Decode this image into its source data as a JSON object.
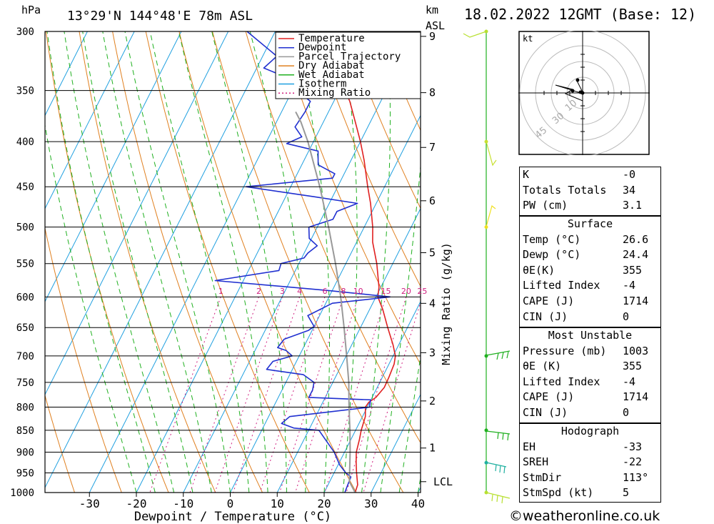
{
  "header": {
    "location": "13°29'N 144°48'E 78m ASL",
    "datetime": "18.02.2022 12GMT (Base: 12)",
    "unit_hpa": "hPa",
    "unit_km": "km",
    "unit_asl": "ASL"
  },
  "chart_data": {
    "type": "line",
    "xlabel": "Dewpoint / Temperature (°C)",
    "xlim": [
      -40,
      40
    ],
    "x_ticks": [
      -30,
      -20,
      -10,
      0,
      10,
      20,
      30,
      40
    ],
    "ylabel": "hPa",
    "ylim": [
      1000,
      300
    ],
    "pressure_ticks": [
      300,
      350,
      400,
      450,
      500,
      550,
      600,
      650,
      700,
      750,
      800,
      850,
      900,
      950,
      1000
    ],
    "km_ticks": [
      1,
      2,
      3,
      4,
      5,
      6,
      7,
      8,
      9
    ],
    "lcl_label": "LCL",
    "lcl_pressure": 972,
    "mixing_ratio_label": "Mixing Ratio (g/kg)",
    "mixing_ratio_values": [
      "1",
      "2",
      "3",
      "4",
      "6",
      "8",
      "10",
      "15",
      "20",
      "25"
    ],
    "legend": [
      "Temperature",
      "Dewpoint",
      "Parcel Trajectory",
      "Dry Adiabat",
      "Wet Adiabat",
      "Isotherm",
      "Mixing Ratio"
    ],
    "legend_placement": "top-center",
    "colors": {
      "temperature": "#e02020",
      "dewpoint": "#2030d0",
      "parcel": "#999999",
      "dry_adiabat": "#e08020",
      "wet_adiabat": "#20b020",
      "isotherm": "#20a0e0",
      "mixing_ratio": "#d02080"
    },
    "series": [
      {
        "name": "Temperature",
        "points": [
          [
            1000,
            26.6
          ],
          [
            980,
            26.3
          ],
          [
            950,
            24.8
          ],
          [
            925,
            23.6
          ],
          [
            900,
            22.5
          ],
          [
            870,
            21.8
          ],
          [
            850,
            21.2
          ],
          [
            820,
            20.6
          ],
          [
            800,
            19.6
          ],
          [
            790,
            19.8
          ],
          [
            780,
            20.8
          ],
          [
            760,
            21.5
          ],
          [
            740,
            21.4
          ],
          [
            715,
            21.1
          ],
          [
            700,
            20.5
          ],
          [
            680,
            18.8
          ],
          [
            650,
            15.8
          ],
          [
            620,
            12.8
          ],
          [
            600,
            10.4
          ],
          [
            585,
            9.6
          ],
          [
            550,
            6.6
          ],
          [
            520,
            3.4
          ],
          [
            500,
            1.8
          ],
          [
            470,
            -1.2
          ],
          [
            450,
            -3.6
          ],
          [
            420,
            -7.2
          ],
          [
            400,
            -10.0
          ],
          [
            380,
            -13.2
          ],
          [
            360,
            -16.6
          ],
          [
            350,
            -18.8
          ],
          [
            345,
            -20.0
          ]
        ]
      },
      {
        "name": "Dewpoint",
        "points": [
          [
            1000,
            24.4
          ],
          [
            960,
            24.0
          ],
          [
            950,
            22.5
          ],
          [
            930,
            20.3
          ],
          [
            900,
            17.8
          ],
          [
            850,
            12.2
          ],
          [
            845,
            6.6
          ],
          [
            835,
            3.5
          ],
          [
            820,
            4.5
          ],
          [
            800,
            20.5
          ],
          [
            785,
            19.9
          ],
          [
            780,
            6.5
          ],
          [
            765,
            6.5
          ],
          [
            750,
            6.0
          ],
          [
            735,
            2.9
          ],
          [
            725,
            -5.5
          ],
          [
            710,
            -5.0
          ],
          [
            700,
            -1.5
          ],
          [
            690,
            -3.4
          ],
          [
            685,
            -5.5
          ],
          [
            670,
            -5.0
          ],
          [
            655,
            -0.8
          ],
          [
            648,
            0.0
          ],
          [
            630,
            -2.5
          ],
          [
            610,
            1.4
          ],
          [
            600,
            13.0
          ],
          [
            590,
            -1.0
          ],
          [
            575,
            -26.0
          ],
          [
            560,
            -13.5
          ],
          [
            550,
            -13.8
          ],
          [
            542,
            -9.5
          ],
          [
            535,
            -9.2
          ],
          [
            525,
            -8.0
          ],
          [
            515,
            -10.5
          ],
          [
            500,
            -11.8
          ],
          [
            490,
            -7.5
          ],
          [
            480,
            -7.5
          ],
          [
            470,
            -4.0
          ],
          [
            462,
            -13.8
          ],
          [
            450,
            -29.5
          ],
          [
            440,
            -12.0
          ],
          [
            435,
            -12.0
          ],
          [
            425,
            -16.5
          ],
          [
            410,
            -18.0
          ],
          [
            402,
            -25.5
          ],
          [
            395,
            -23.0
          ],
          [
            385,
            -25.5
          ],
          [
            370,
            -25.0
          ],
          [
            360,
            -25.0
          ],
          [
            350,
            -29.0
          ],
          [
            345,
            -28.0
          ],
          [
            330,
            -38.5
          ],
          [
            320,
            -37.0
          ],
          [
            300,
            -46.0
          ]
        ]
      },
      {
        "name": "Parcel Trajectory",
        "points": [
          [
            1000,
            26.6
          ],
          [
            972,
            24.2
          ],
          [
            900,
            21.2
          ],
          [
            850,
            18.8
          ],
          [
            800,
            16.1
          ],
          [
            750,
            13.4
          ],
          [
            700,
            10.1
          ],
          [
            650,
            6.5
          ],
          [
            600,
            2.5
          ],
          [
            550,
            -2.2
          ],
          [
            500,
            -7.6
          ],
          [
            450,
            -13.8
          ],
          [
            400,
            -21.2
          ],
          [
            380,
            -24.8
          ],
          [
            370,
            -27.0
          ]
        ]
      }
    ],
    "wind_profile": [
      {
        "pressure": 300,
        "label": "300 hPa"
      },
      {
        "pressure": 400,
        "label": "400 hPa"
      },
      {
        "pressure": 500,
        "label": "500 hPa"
      },
      {
        "pressure": 700,
        "label": "700 hPa"
      },
      {
        "pressure": 850,
        "label": "850 hPa"
      },
      {
        "pressure": 925,
        "label": "925 hPa"
      },
      {
        "pressure": 1000,
        "label": "1000 hPa"
      }
    ]
  },
  "hodograph": {
    "unit": "kt",
    "ring_labels": [
      "10",
      "30",
      "45"
    ]
  },
  "indices": [
    {
      "label": "K",
      "value": "-0"
    },
    {
      "label": "Totals Totals",
      "value": "34"
    },
    {
      "label": "PW (cm)",
      "value": "3.1"
    }
  ],
  "surface": {
    "title": "Surface",
    "rows": [
      {
        "label": "Temp (°C)",
        "value": "26.6"
      },
      {
        "label": "Dewp (°C)",
        "value": "24.4"
      },
      {
        "label": "θE(K)",
        "value": "355"
      },
      {
        "label": "Lifted Index",
        "value": "-4"
      },
      {
        "label": "CAPE (J)",
        "value": "1714"
      },
      {
        "label": "CIN (J)",
        "value": "0"
      }
    ]
  },
  "most_unstable": {
    "title": "Most Unstable",
    "rows": [
      {
        "label": "Pressure (mb)",
        "value": "1003"
      },
      {
        "label": "θE (K)",
        "value": "355"
      },
      {
        "label": "Lifted Index",
        "value": "-4"
      },
      {
        "label": "CAPE (J)",
        "value": "1714"
      },
      {
        "label": "CIN (J)",
        "value": "0"
      }
    ]
  },
  "hodograph_stats": {
    "title": "Hodograph",
    "rows": [
      {
        "label": "EH",
        "value": "-33"
      },
      {
        "label": "SREH",
        "value": "-22"
      },
      {
        "label": "StmDir",
        "value": "113°"
      },
      {
        "label": "StmSpd (kt)",
        "value": "5"
      }
    ]
  },
  "credit": "©weatheronline.co.uk"
}
